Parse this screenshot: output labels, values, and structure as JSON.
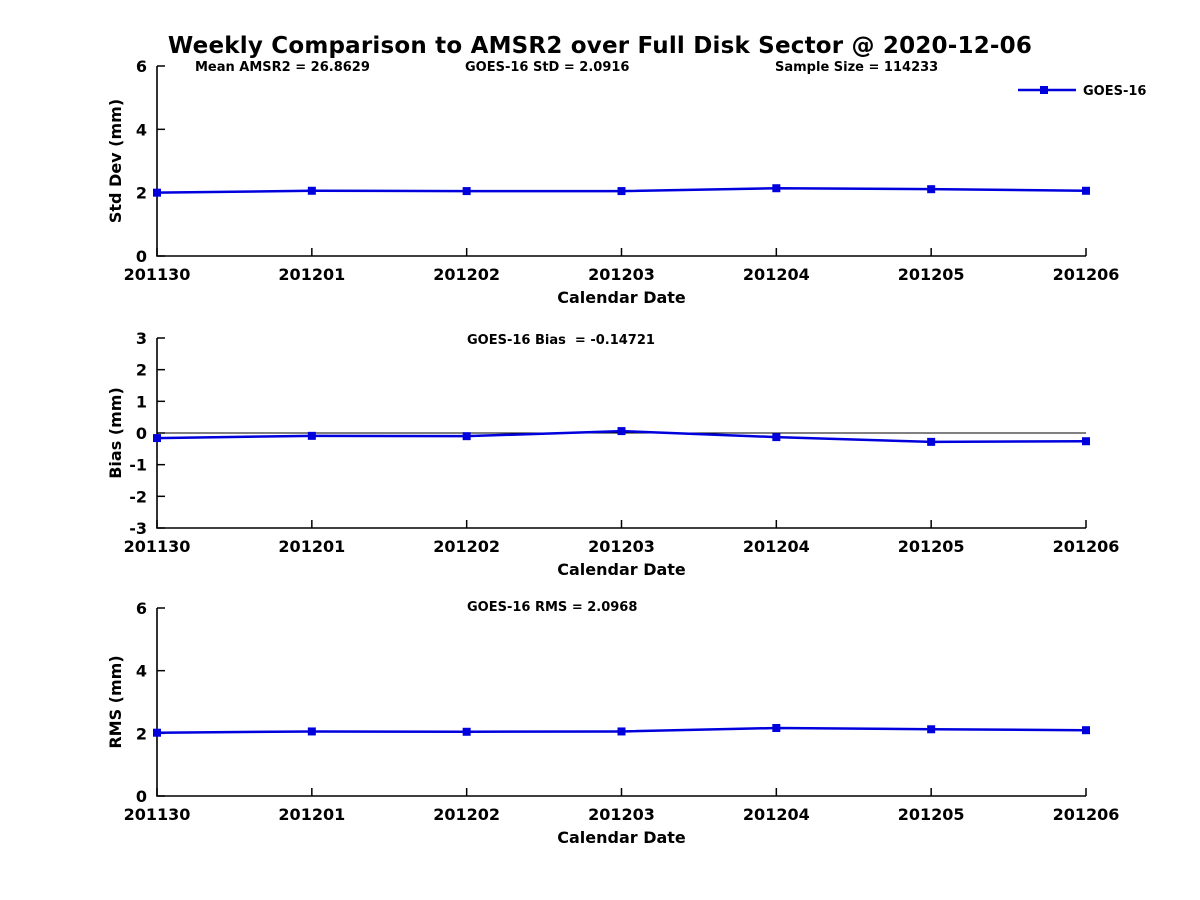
{
  "title": "Weekly Comparison to AMSR2 over Full Disk Sector @ 2020-12-06",
  "colors": {
    "series_blue": "#0000dd",
    "axis": "#000000",
    "zero_line": "#000000",
    "background": "#ffffff"
  },
  "chart_data": [
    {
      "id": "std-dev",
      "type": "line",
      "x": [
        "201130",
        "201201",
        "201202",
        "201203",
        "201204",
        "201205",
        "201206"
      ],
      "xlabel": "Calendar Date",
      "ylabel": "Std Dev (mm)",
      "ylim": [
        0,
        6
      ],
      "yticks": [
        0,
        2,
        4,
        6
      ],
      "grid": false,
      "series": [
        {
          "name": "GOES-16",
          "color": "#0000dd",
          "marker": "square",
          "values": [
            2.0,
            2.06,
            2.05,
            2.05,
            2.14,
            2.11,
            2.06
          ]
        }
      ],
      "annotations": [
        {
          "text": "Mean AMSR2 = 26.8629"
        },
        {
          "text": "GOES-16 StD = 2.0916"
        },
        {
          "text": "Sample Size = 114233"
        }
      ],
      "legend": {
        "label": "GOES-16",
        "position": "top-right"
      }
    },
    {
      "id": "bias",
      "type": "line",
      "x": [
        "201130",
        "201201",
        "201202",
        "201203",
        "201204",
        "201205",
        "201206"
      ],
      "xlabel": "Calendar Date",
      "ylabel": "Bias (mm)",
      "ylim": [
        -3,
        3
      ],
      "yticks": [
        -3,
        -2,
        -1,
        0,
        1,
        2,
        3
      ],
      "grid": false,
      "zero_line": true,
      "series": [
        {
          "name": "GOES-16",
          "color": "#0000dd",
          "marker": "square",
          "values": [
            -0.16,
            -0.09,
            -0.1,
            0.06,
            -0.13,
            -0.28,
            -0.26
          ]
        }
      ],
      "annotations": [
        {
          "text": "GOES-16 Bias  = -0.14721"
        }
      ]
    },
    {
      "id": "rms",
      "type": "line",
      "x": [
        "201130",
        "201201",
        "201202",
        "201203",
        "201204",
        "201205",
        "201206"
      ],
      "xlabel": "Calendar Date",
      "ylabel": "RMS (mm)",
      "ylim": [
        0,
        6
      ],
      "yticks": [
        0,
        2,
        4,
        6
      ],
      "grid": false,
      "series": [
        {
          "name": "GOES-16",
          "color": "#0000dd",
          "marker": "square",
          "values": [
            2.02,
            2.06,
            2.05,
            2.06,
            2.17,
            2.13,
            2.1
          ]
        }
      ],
      "annotations": [
        {
          "text": "GOES-16 RMS = 2.0968"
        }
      ]
    }
  ]
}
